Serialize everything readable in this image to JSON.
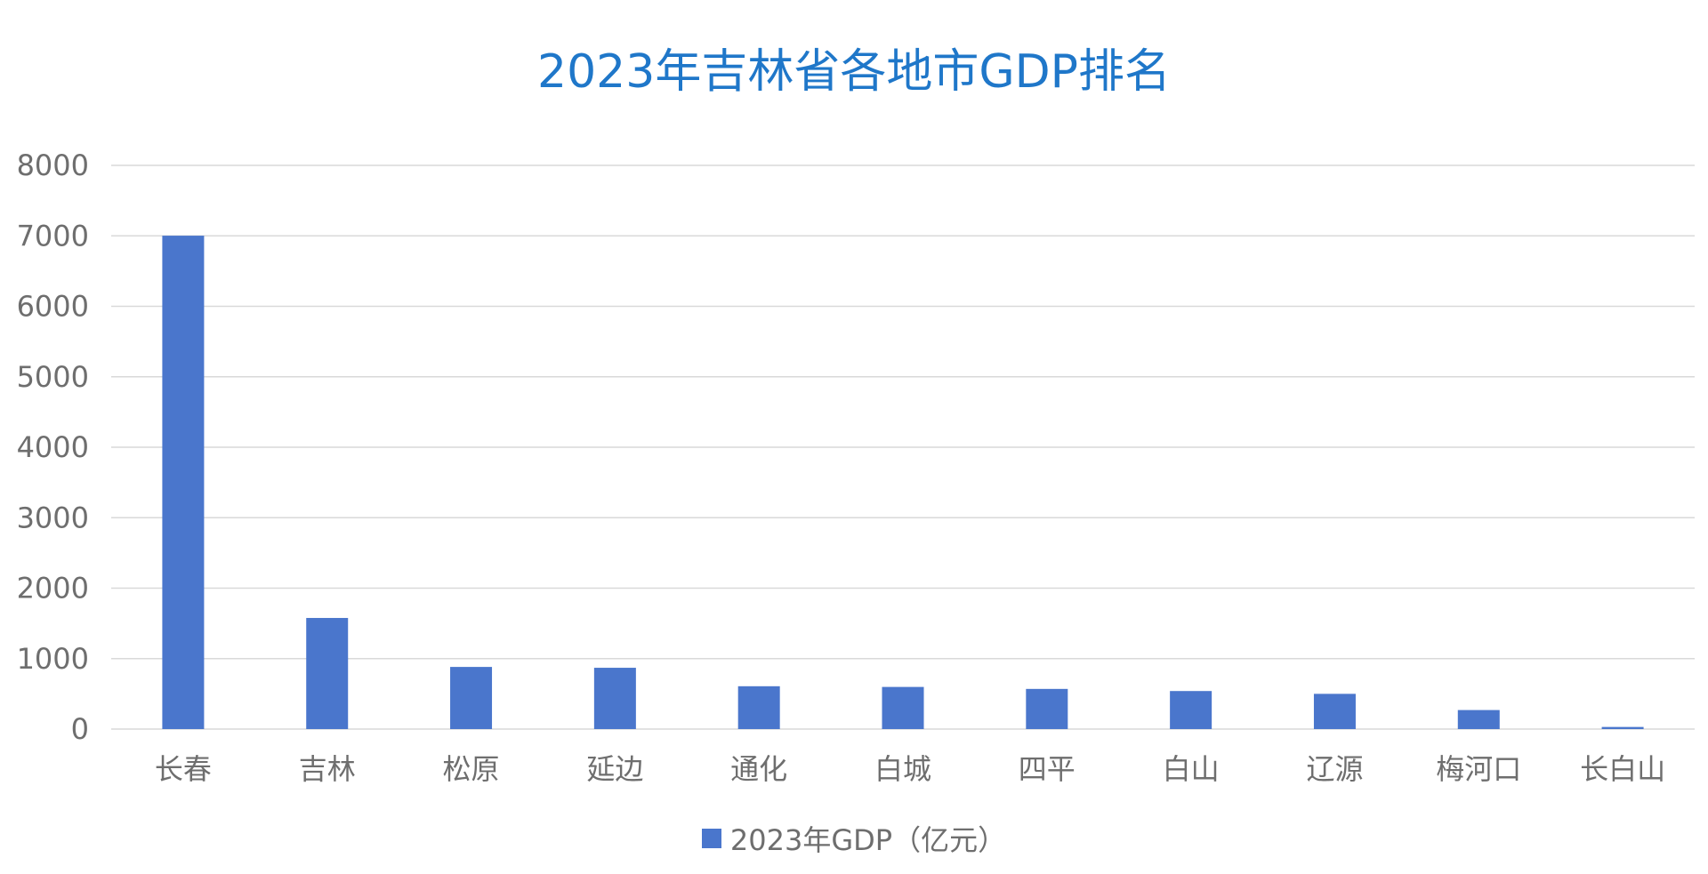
{
  "chart_data": {
    "type": "bar",
    "title": "2023年吉林省各地市GDP排名",
    "categories": [
      "长春",
      "吉林",
      "松原",
      "延边",
      "通化",
      "白城",
      "四平",
      "白山",
      "辽源",
      "梅河口",
      "长白山"
    ],
    "series": [
      {
        "name": "2023年GDP（亿元）",
        "values": [
          7002,
          1577,
          882,
          870,
          608,
          598,
          570,
          540,
          500,
          270,
          30
        ]
      }
    ],
    "ylim": [
      0,
      8000
    ],
    "yticks": [
      "0",
      "1000",
      "2000",
      "3000",
      "4000",
      "5000",
      "6000",
      "7000",
      "8000"
    ],
    "grid": true,
    "legend_position": "bottom",
    "colors": {
      "bar": "#4a76cc",
      "title": "#1f77c9",
      "grid": "#d9d9d9",
      "axis_text": "#6e6e6e"
    }
  }
}
